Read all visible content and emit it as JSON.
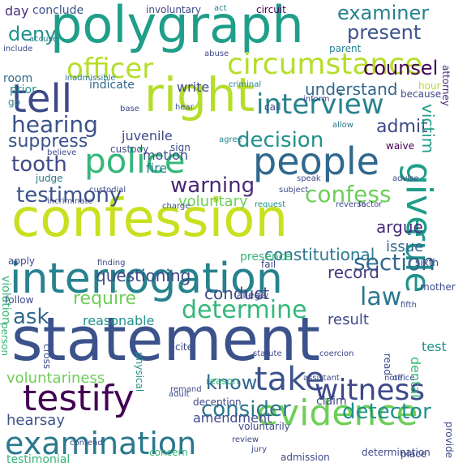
{
  "words": [
    {
      "text": "confession",
      "color": "#c8e020"
    },
    {
      "text": "statement",
      "color": "#3b528b"
    },
    {
      "text": "polygraph",
      "color": "#1f9e89"
    },
    {
      "text": "right",
      "color": "#b5de2b"
    },
    {
      "text": "interrogation",
      "color": "#26828e"
    },
    {
      "text": "tell",
      "color": "#3e4989"
    },
    {
      "text": "people",
      "color": "#31688e"
    },
    {
      "text": "police",
      "color": "#35b779"
    },
    {
      "text": "evidence",
      "color": "#6ece58"
    },
    {
      "text": "testify",
      "color": "#440154"
    },
    {
      "text": "examination",
      "color": "#2a788e"
    },
    {
      "text": "circumstance",
      "color": "#b5de2b"
    },
    {
      "text": "officer",
      "color": "#b5de2b"
    },
    {
      "text": "interview",
      "color": "#26828e"
    },
    {
      "text": "give",
      "color": "#1f9e89"
    },
    {
      "text": "rule",
      "color": "#21918c"
    },
    {
      "text": "take",
      "color": "#3b528b"
    },
    {
      "text": "witness",
      "color": "#3e4989"
    },
    {
      "text": "determine",
      "color": "#35b779"
    },
    {
      "text": "section",
      "color": "#31688e"
    },
    {
      "text": "hearing",
      "color": "#3b528b"
    },
    {
      "text": "decision",
      "color": "#21918c"
    },
    {
      "text": "testimony",
      "color": "#3b528b"
    },
    {
      "text": "warning",
      "color": "#482878"
    },
    {
      "text": "law",
      "color": "#2a788e"
    },
    {
      "text": "consider",
      "color": "#2a788e"
    },
    {
      "text": "detector",
      "color": "#21918c"
    },
    {
      "text": "confess",
      "color": "#6ece58"
    },
    {
      "text": "tooth",
      "color": "#3e4989"
    },
    {
      "text": "examiner",
      "color": "#26828e"
    },
    {
      "text": "present",
      "color": "#3b528b"
    },
    {
      "text": "counsel",
      "color": "#440154"
    },
    {
      "text": "deny",
      "color": "#21918c"
    },
    {
      "text": "know",
      "color": "#31688e"
    },
    {
      "text": "ask",
      "color": "#31688e"
    },
    {
      "text": "require",
      "color": "#6ece58"
    },
    {
      "text": "admit",
      "color": "#3e4989"
    },
    {
      "text": "suppress",
      "color": "#3b528b"
    },
    {
      "text": "questioning",
      "color": "#3e4989"
    },
    {
      "text": "victim",
      "color": "#1f9e89"
    },
    {
      "text": "constitutional",
      "color": "#2a788e"
    },
    {
      "text": "understand",
      "color": "#31688e"
    },
    {
      "text": "record",
      "color": "#443983"
    },
    {
      "text": "conduct",
      "color": "#3e4989"
    },
    {
      "text": "voluntariness",
      "color": "#6ece58"
    },
    {
      "text": "amendment",
      "color": "#3e4989"
    },
    {
      "text": "hearsay",
      "color": "#3b528b"
    },
    {
      "text": "testimonial",
      "color": "#35b779"
    },
    {
      "text": "argue",
      "color": "#472d7b"
    },
    {
      "text": "issue",
      "color": "#31688e"
    },
    {
      "text": "result",
      "color": "#3e4989"
    },
    {
      "text": "reasonable",
      "color": "#21918c"
    },
    {
      "text": "voluntary",
      "color": "#6ece58"
    },
    {
      "text": "motion",
      "color": "#3b528b"
    },
    {
      "text": "fire",
      "color": "#26828e"
    },
    {
      "text": "juvenile",
      "color": "#3e4989"
    },
    {
      "text": "indicate",
      "color": "#31688e"
    },
    {
      "text": "write",
      "color": "#3e4989"
    },
    {
      "text": "room",
      "color": "#31688e"
    },
    {
      "text": "prior",
      "color": "#21918c"
    },
    {
      "text": "go",
      "color": "#26828e"
    },
    {
      "text": "day",
      "color": "#472d7b"
    },
    {
      "text": "conclude",
      "color": "#3b528b"
    },
    {
      "text": "involuntary",
      "color": "#3e4989"
    },
    {
      "text": "act",
      "color": "#26828e"
    },
    {
      "text": "circuit",
      "color": "#440154"
    },
    {
      "text": "accuse",
      "color": "#2a788e"
    },
    {
      "text": "include",
      "color": "#3e4989"
    },
    {
      "text": "inadmissible",
      "color": "#2a788e"
    },
    {
      "text": "abuse",
      "color": "#3e4989"
    },
    {
      "text": "parent",
      "color": "#26828e"
    },
    {
      "text": "attorney",
      "color": "#482878"
    },
    {
      "text": "hour",
      "color": "#b5de2b"
    },
    {
      "text": "because",
      "color": "#3e4989"
    },
    {
      "text": "criminal",
      "color": "#26828e"
    },
    {
      "text": "hear",
      "color": "#3b528b"
    },
    {
      "text": "inform",
      "color": "#3e4989"
    },
    {
      "text": "base",
      "color": "#3e4989"
    },
    {
      "text": "call",
      "color": "#3e4989"
    },
    {
      "text": "custody",
      "color": "#3e4989"
    },
    {
      "text": "agree",
      "color": "#26828e"
    },
    {
      "text": "allow",
      "color": "#2a788e"
    },
    {
      "text": "waive",
      "color": "#440154"
    },
    {
      "text": "sign",
      "color": "#3e4989"
    },
    {
      "text": "believe",
      "color": "#3e4989"
    },
    {
      "text": "charge",
      "color": "#3b528b"
    },
    {
      "text": "judge",
      "color": "#2a788e"
    },
    {
      "text": "custodial",
      "color": "#3e4989"
    },
    {
      "text": "incriminate",
      "color": "#3e4989"
    },
    {
      "text": "speak",
      "color": "#3e4989"
    },
    {
      "text": "subject",
      "color": "#3e4989"
    },
    {
      "text": "advise",
      "color": "#3e4989"
    },
    {
      "text": "request",
      "color": "#21918c"
    },
    {
      "text": "reverse",
      "color": "#3e4989"
    },
    {
      "text": "factor",
      "color": "#3e4989"
    },
    {
      "text": "violation",
      "color": "#35b779"
    },
    {
      "text": "apply",
      "color": "#3e4989"
    },
    {
      "text": "finding",
      "color": "#3e4989"
    },
    {
      "text": "presence",
      "color": "#35b779"
    },
    {
      "text": "fail",
      "color": "#3e4989"
    },
    {
      "text": "follow",
      "color": "#3e4989"
    },
    {
      "text": "allege",
      "color": "#3e4989"
    },
    {
      "text": "say",
      "color": "#3e4989"
    },
    {
      "text": "mother",
      "color": "#3e4989"
    },
    {
      "text": "fifth",
      "color": "#3e4989"
    },
    {
      "text": "sixth",
      "color": "#3e4989"
    },
    {
      "text": "cite",
      "color": "#3e4989"
    },
    {
      "text": "cross",
      "color": "#3e4989"
    },
    {
      "text": "physical",
      "color": "#21918c"
    },
    {
      "text": "statute",
      "color": "#3e4989"
    },
    {
      "text": "test",
      "color": "#21918c"
    },
    {
      "text": "dental",
      "color": "#35b779"
    },
    {
      "text": "read",
      "color": "#3e4989"
    },
    {
      "text": "assistant",
      "color": "#3e4989"
    },
    {
      "text": "note",
      "color": "#3e4989"
    },
    {
      "text": "office",
      "color": "#3e4989"
    },
    {
      "text": "adult",
      "color": "#3e4989"
    },
    {
      "text": "reason",
      "color": "#35b779"
    },
    {
      "text": "claim",
      "color": "#3e4989"
    },
    {
      "text": "deception",
      "color": "#3e4989"
    },
    {
      "text": "contend",
      "color": "#3e4989"
    },
    {
      "text": "voluntarily",
      "color": "#3e4989"
    },
    {
      "text": "review",
      "color": "#3e4989"
    },
    {
      "text": "jury",
      "color": "#3e4989"
    },
    {
      "text": "concern",
      "color": "#35b779"
    },
    {
      "text": "admission",
      "color": "#3e4989"
    },
    {
      "text": "determination",
      "color": "#3e4989"
    },
    {
      "text": "place",
      "color": "#3e4989"
    },
    {
      "text": "provide",
      "color": "#3e4989"
    },
    {
      "text": "person",
      "color": "#35b779"
    },
    {
      "text": "coercion",
      "color": "#3e4989"
    },
    {
      "text": "remand",
      "color": "#3e4989"
    }
  ]
}
